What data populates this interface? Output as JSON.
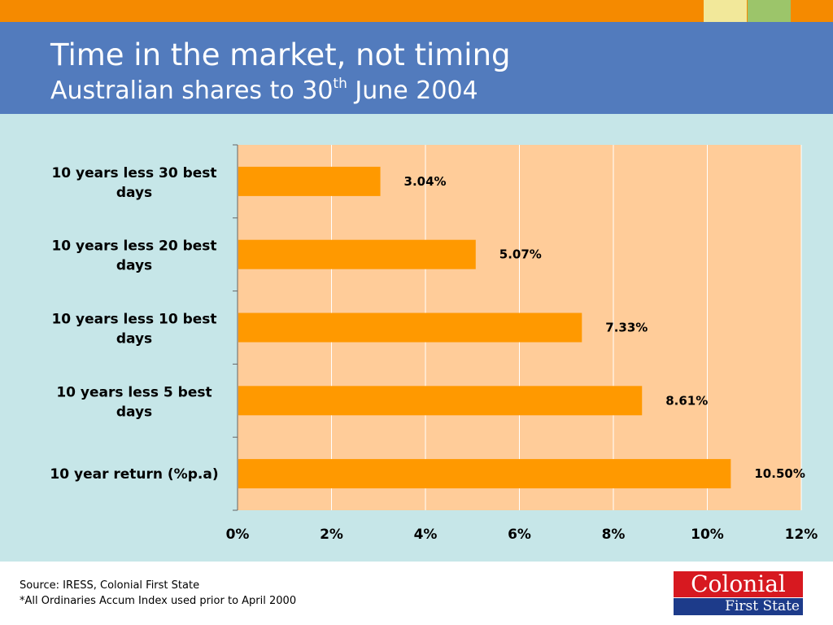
{
  "header": {
    "title": "Time in the market, not timing",
    "subtitle_main": "Australian shares to 30",
    "subtitle_sup": "th",
    "subtitle_end": " June 2004"
  },
  "chart_data": {
    "type": "bar",
    "orientation": "horizontal",
    "categories": [
      "10 years less 30 best days",
      "10 years less 20 best days",
      "10 years less 10 best days",
      "10 years less 5 best days",
      "10 year return (%p.a)"
    ],
    "values": [
      3.04,
      5.07,
      7.33,
      8.61,
      10.5
    ],
    "value_labels": [
      "3.04%",
      "5.07%",
      "7.33%",
      "8.61%",
      "10.50%"
    ],
    "xlim": [
      0,
      12
    ],
    "xticks": [
      "0%",
      "2%",
      "4%",
      "6%",
      "8%",
      "10%",
      "12%"
    ],
    "grid": true,
    "legend": "none",
    "colors": {
      "bar": "#ff9900",
      "plot_bg": "#ffcc99",
      "panel_bg": "#c6e6e8",
      "grid": "#ffffff"
    }
  },
  "footer": {
    "source": "Source: IRESS, Colonial First State",
    "note": "*All Ordinaries Accum Index used prior to April 2000"
  },
  "logo": {
    "line1": "Colonial",
    "line2": "First State"
  },
  "colors": {
    "header": "#527bbd",
    "topbar": "#f58a00",
    "logo_red": "#d71920",
    "logo_blue": "#1d3b8a"
  }
}
